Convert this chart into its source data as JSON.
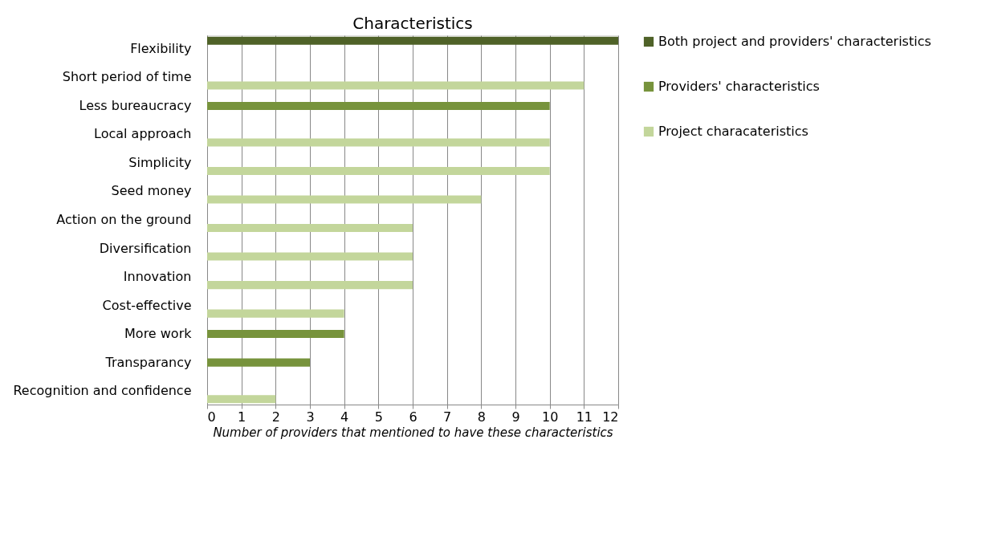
{
  "chart_data": {
    "type": "bar",
    "orientation": "horizontal",
    "title": "Characteristics",
    "xlabel": "Number of providers that mentioned to have these characteristics",
    "categories": [
      "Flexibility",
      "Short period of time",
      "Less bureaucracy",
      "Local approach",
      "Simplicity",
      "Seed money",
      "Action on the ground",
      "Diversification",
      "Innovation",
      "Cost-effective",
      "More work",
      "Transparancy",
      "Recognition and confidence"
    ],
    "series": [
      {
        "name": "Both project and providers' characteristics",
        "color": "#4f6228",
        "values": [
          12,
          null,
          null,
          null,
          null,
          null,
          null,
          null,
          null,
          null,
          null,
          null,
          null
        ]
      },
      {
        "name": "Providers' characteristics",
        "color": "#77933c",
        "values": [
          null,
          null,
          10,
          null,
          null,
          null,
          null,
          null,
          null,
          null,
          4,
          3,
          null
        ]
      },
      {
        "name": "Project characateristics",
        "color": "#c3d69b",
        "values": [
          null,
          11,
          null,
          10,
          10,
          8,
          6,
          6,
          6,
          4,
          null,
          null,
          2
        ]
      }
    ],
    "xlim": [
      0,
      12
    ],
    "xticks": [
      0,
      1,
      2,
      3,
      4,
      5,
      6,
      7,
      8,
      9,
      10,
      11,
      12
    ],
    "grid": "x",
    "legend": "right"
  }
}
